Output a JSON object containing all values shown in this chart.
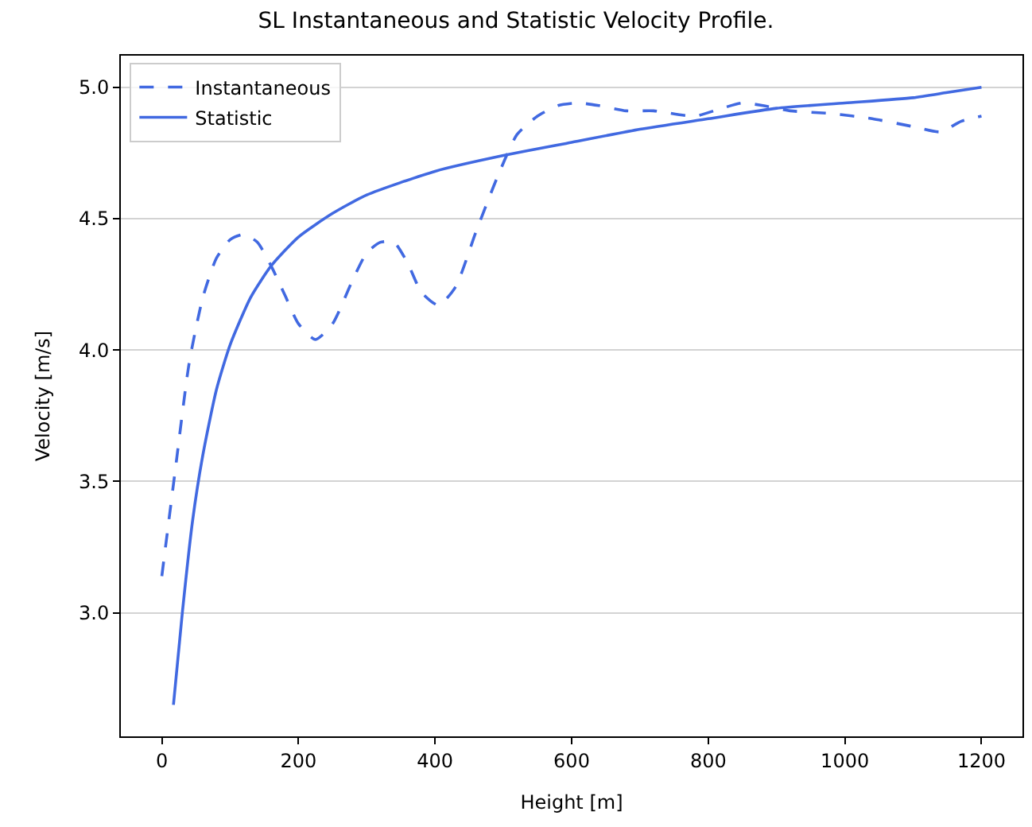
{
  "chart_data": {
    "type": "line",
    "title": "SL Instantaneous and Statistic Velocity Profile.",
    "xlabel": "Height [m]",
    "ylabel": "Velocity [m/s]",
    "xlim": [
      -60,
      1260
    ],
    "xticks": [
      0,
      200,
      400,
      600,
      800,
      1000,
      1200
    ],
    "ylim": [
      2.53,
      5.12
    ],
    "yticks": [
      {
        "value": 3,
        "label": "3.0"
      },
      3.5,
      {
        "value": 4,
        "label": "4.0"
      },
      4.5,
      {
        "value": 5,
        "label": "5.0"
      }
    ],
    "grid": "y",
    "legend": "top left",
    "marker": "none",
    "series": [
      {
        "name": "Instantaneous",
        "color": "#4169e1",
        "line_style": "dashed",
        "x": [
          0,
          20,
          40,
          60,
          80,
          100,
          120,
          140,
          160,
          180,
          200,
          225,
          250,
          280,
          300,
          320,
          340,
          360,
          380,
          405,
          430,
          460,
          490,
          520,
          550,
          580,
          610,
          640,
          680,
          720,
          780,
          820,
          850,
          880,
          920,
          980,
          1040,
          1100,
          1140,
          1170,
          1200
        ],
        "values": [
          3.14,
          3.55,
          3.95,
          4.2,
          4.35,
          4.42,
          4.44,
          4.41,
          4.32,
          4.21,
          4.1,
          4.04,
          4.1,
          4.27,
          4.37,
          4.41,
          4.41,
          4.33,
          4.22,
          4.17,
          4.24,
          4.45,
          4.65,
          4.82,
          4.89,
          4.93,
          4.94,
          4.93,
          4.91,
          4.91,
          4.89,
          4.92,
          4.94,
          4.93,
          4.91,
          4.9,
          4.88,
          4.85,
          4.83,
          4.87,
          4.89
        ]
      },
      {
        "name": "Statistic",
        "color": "#4169e1",
        "line_style": "solid",
        "x": [
          17,
          30,
          45,
          60,
          80,
          100,
          130,
          160,
          200,
          250,
          300,
          400,
          500,
          600,
          700,
          800,
          900,
          1000,
          1100,
          1150,
          1200
        ],
        "values": [
          2.65,
          3.0,
          3.35,
          3.6,
          3.85,
          4.02,
          4.2,
          4.32,
          4.43,
          4.52,
          4.59,
          4.68,
          4.74,
          4.79,
          4.84,
          4.88,
          4.92,
          4.94,
          4.96,
          4.98,
          5.0
        ]
      }
    ]
  }
}
